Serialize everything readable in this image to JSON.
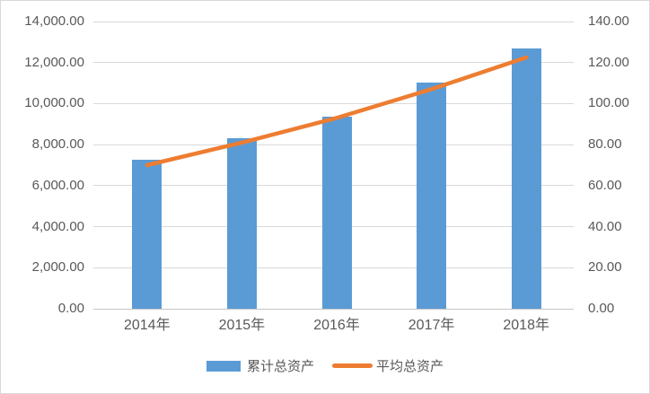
{
  "chart": {
    "background": "#FFFFFF",
    "border_color": "#D9D9D9",
    "text_color": "#595959",
    "gridline_color": "#D9D9D9",
    "axis_line_color": "#C6C6C6"
  },
  "chart_data": {
    "type": "bar",
    "title": "",
    "grid": true,
    "legend_position": "bottom",
    "categories": [
      "2014年",
      "2015年",
      "2016年",
      "2017年",
      "2018年"
    ],
    "series": [
      {
        "name": "累计总资产",
        "type": "bar",
        "axis": "left",
        "color": "#5B9BD5",
        "values": [
          7260,
          8300,
          9380,
          11040,
          12690
        ]
      },
      {
        "name": "平均总资产",
        "type": "line",
        "axis": "right",
        "color": "#ED7D31",
        "values": [
          70,
          81,
          93,
          107,
          122.5
        ]
      }
    ],
    "left_axis": {
      "min": 0,
      "max": 14000,
      "step": 2000,
      "tick_labels": [
        "0.00",
        "2,000.00",
        "4,000.00",
        "6,000.00",
        "8,000.00",
        "10,000.00",
        "12,000.00",
        "14,000.00"
      ]
    },
    "right_axis": {
      "min": 0,
      "max": 140,
      "step": 20,
      "tick_labels": [
        "0.00",
        "20.00",
        "40.00",
        "60.00",
        "80.00",
        "100.00",
        "120.00",
        "140.00"
      ]
    }
  }
}
